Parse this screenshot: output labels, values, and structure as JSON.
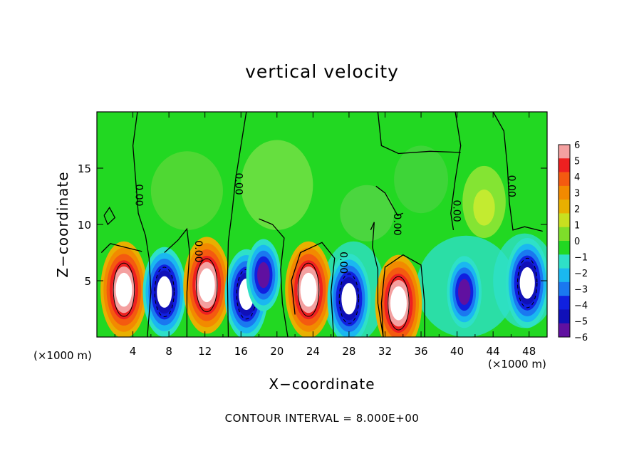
{
  "chart_data": {
    "type": "heatmap",
    "title": "vertical velocity",
    "xlabel": "X−coordinate",
    "ylabel": "Z−coordinate",
    "x_unit_left": "(×1000 m)",
    "x_unit_right": "(×1000 m)",
    "xlim": [
      0,
      50
    ],
    "ylim": [
      0,
      20
    ],
    "xticks": [
      4,
      8,
      12,
      16,
      20,
      24,
      28,
      32,
      36,
      40,
      44,
      48
    ],
    "yticks": [
      5,
      10,
      15
    ],
    "colorbar": {
      "min": -6,
      "max": 6,
      "ticks": [
        "6",
        "5",
        "4",
        "3",
        "2",
        "1",
        "0",
        "−1",
        "−2",
        "−3",
        "−4",
        "−5",
        "−6"
      ]
    },
    "contour_label": "0.00",
    "contour_interval_text": "CONTOUR INTERVAL = 8.000E+00",
    "cells": [
      {
        "x": 3.0,
        "z": 4.2,
        "w": 9
      },
      {
        "x": 7.5,
        "z": 4.0,
        "w": -9
      },
      {
        "x": 12.2,
        "z": 4.6,
        "w": 9
      },
      {
        "x": 16.6,
        "z": 3.8,
        "w": -9
      },
      {
        "x": 18.5,
        "z": 5.5,
        "w": -6
      },
      {
        "x": 23.5,
        "z": 4.2,
        "w": 9
      },
      {
        "x": 28.0,
        "z": 3.4,
        "w": -9
      },
      {
        "x": 33.5,
        "z": 3.0,
        "w": 9
      },
      {
        "x": 40.8,
        "z": 4.0,
        "w": -5
      },
      {
        "x": 47.8,
        "z": 4.8,
        "w": -8
      }
    ],
    "colors": {
      "background": "#22d822",
      "positive_core": "#ffffff",
      "negative_core": "#ffffff"
    }
  }
}
